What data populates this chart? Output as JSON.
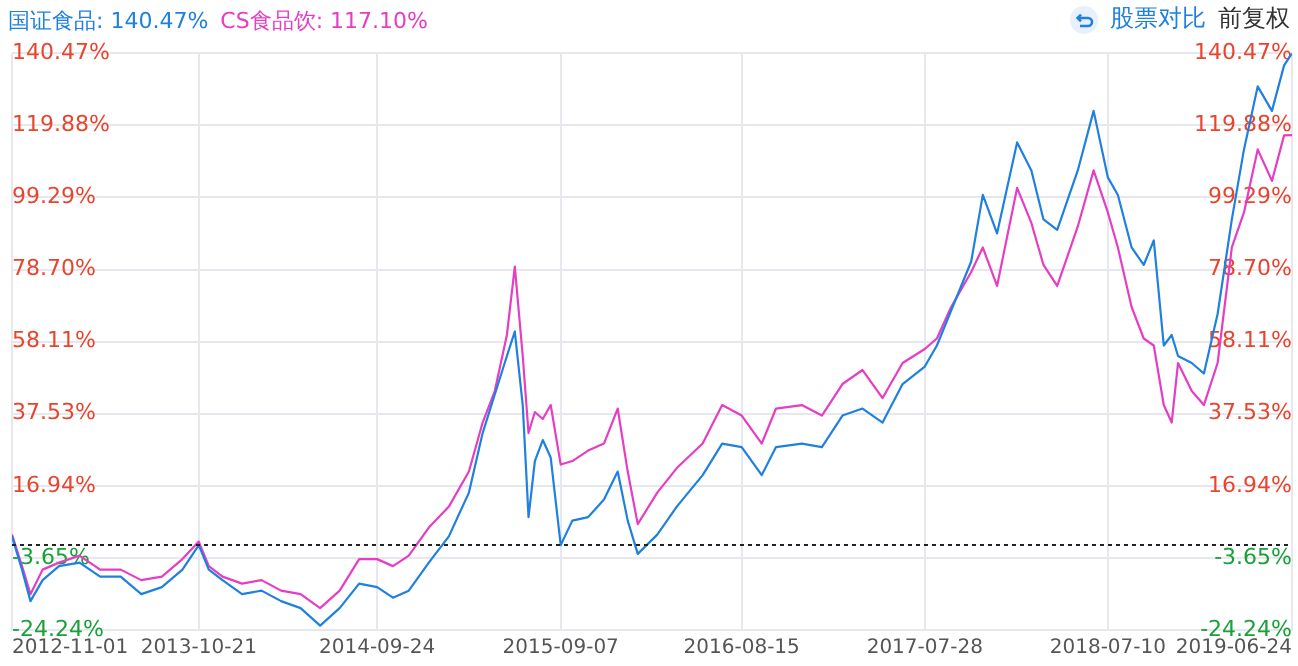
{
  "chart_data": {
    "type": "line",
    "legend": "top left",
    "grid": true,
    "marker": "none",
    "line_style": "solid",
    "annotations": [
      "股票对比",
      "前复权"
    ],
    "x": [
      "2012-11-01",
      "2012-11-20",
      "2012-12-06",
      "2012-12-29",
      "2013-01-29",
      "2013-03-09",
      "2013-04-17",
      "2013-05-26",
      "2013-07-04",
      "2013-08-12",
      "2013-09-20",
      "2013-10-21",
      "2013-11-09",
      "2013-12-05",
      "2014-01-11",
      "2014-02-17",
      "2014-03-26",
      "2014-05-02",
      "2014-06-08",
      "2014-07-15",
      "2014-08-21",
      "2014-09-24",
      "2014-10-24",
      "2014-11-23",
      "2014-12-31",
      "2015-02-07",
      "2015-03-17",
      "2015-04-12",
      "2015-05-05",
      "2015-05-28",
      "2015-06-12",
      "2015-06-27",
      "2015-07-08",
      "2015-07-20",
      "2015-08-04",
      "2015-08-19",
      "2015-09-07",
      "2015-09-29",
      "2015-10-29",
      "2015-11-28",
      "2015-12-24",
      "2016-01-12",
      "2016-01-31",
      "2016-03-08",
      "2016-04-14",
      "2016-06-02",
      "2016-07-09",
      "2016-08-15",
      "2016-09-22",
      "2016-10-19",
      "2016-12-07",
      "2017-01-14",
      "2017-02-22",
      "2017-04-01",
      "2017-05-09",
      "2017-06-16",
      "2017-07-28",
      "2017-08-20",
      "2017-09-16",
      "2017-10-24",
      "2017-11-15",
      "2017-12-12",
      "2018-01-19",
      "2018-02-15",
      "2018-03-10",
      "2018-04-05",
      "2018-05-14",
      "2018-06-13",
      "2018-07-10",
      "2018-07-29",
      "2018-08-24",
      "2018-09-16",
      "2018-10-05",
      "2018-10-24",
      "2018-11-08",
      "2018-11-20",
      "2018-12-16",
      "2019-01-08",
      "2019-02-03",
      "2019-03-02",
      "2019-03-25",
      "2019-04-20",
      "2019-05-17",
      "2019-06-09",
      "2019-06-24"
    ],
    "series": [
      {
        "name": "国证食品: 140.47%",
        "color": "#1f80e0",
        "values": [
          2.5,
          -7,
          -16,
          -10,
          -6,
          -5,
          -9,
          -9,
          -14,
          -12,
          -7,
          0,
          -7,
          -10,
          -14,
          -13,
          -16,
          -18,
          -23,
          -18,
          -11,
          -12,
          -15,
          -13,
          -5,
          2.5,
          15,
          32,
          43,
          54,
          61,
          40,
          8,
          24,
          30,
          25,
          0,
          7,
          8,
          13,
          21,
          7,
          -2.5,
          3,
          11,
          20,
          29,
          28,
          20,
          28,
          29,
          28,
          37,
          39,
          35,
          46,
          51,
          57,
          67,
          81,
          100,
          89,
          115,
          107,
          93,
          90,
          107,
          124,
          105,
          100,
          85,
          80,
          87,
          57,
          60,
          54,
          52,
          49,
          66,
          93,
          113,
          131,
          124,
          137,
          140.47
        ]
      },
      {
        "name": "CS食品饮: 117.10%",
        "color": "#e63ec3",
        "values": [
          3,
          -6,
          -14,
          -7,
          -5,
          -3,
          -7,
          -7,
          -10,
          -9,
          -4,
          1,
          -6,
          -9,
          -11,
          -10,
          -13,
          -14,
          -18,
          -13,
          -4,
          -4,
          -6,
          -3,
          5,
          11,
          21,
          35,
          44,
          60,
          79.5,
          54,
          32,
          38,
          36,
          40,
          23,
          24,
          27,
          29,
          39,
          21,
          6,
          15,
          22,
          29,
          40,
          37,
          29,
          39,
          40,
          37,
          46,
          50,
          42,
          52,
          56,
          59,
          68,
          78,
          85,
          74,
          102,
          92,
          80,
          74,
          91,
          107,
          95,
          85,
          68,
          59,
          57,
          40,
          35,
          52,
          44,
          40,
          52,
          85,
          95,
          113,
          104,
          117,
          117.1
        ]
      }
    ],
    "xlim": [
      "2012-11-01",
      "2019-06-24"
    ],
    "xticks": [
      "2012-11-01",
      "2013-10-21",
      "2014-09-24",
      "2015-09-07",
      "2016-08-15",
      "2017-07-28",
      "2018-07-10",
      "2019-06-24"
    ],
    "ylim": [
      -24.24,
      140.47
    ],
    "yticks": [
      {
        "value": -24.24,
        "label": "-24.24%"
      },
      {
        "value": -3.65,
        "label": "-3.65%"
      },
      {
        "value": 16.94,
        "label": "16.94%"
      },
      {
        "value": 37.53,
        "label": "37.53%"
      },
      {
        "value": 58.11,
        "label": "58.11%"
      },
      {
        "value": 78.7,
        "label": "78.70%"
      },
      {
        "value": 99.29,
        "label": "99.29%"
      },
      {
        "value": 119.88,
        "label": "119.88%"
      },
      {
        "value": 140.47,
        "label": "140.47%"
      }
    ],
    "y2lim": [
      -24.24,
      140.47
    ],
    "y2ticks": [
      {
        "value": -24.24,
        "label": "-24.24%"
      },
      {
        "value": -3.65,
        "label": "-3.65%"
      },
      {
        "value": 16.94,
        "label": "16.94%"
      },
      {
        "value": 37.53,
        "label": "37.53%"
      },
      {
        "value": 58.11,
        "label": "58.11%"
      },
      {
        "value": 78.7,
        "label": "78.70%"
      },
      {
        "value": 99.29,
        "label": "99.29%"
      },
      {
        "value": 119.88,
        "label": "119.88%"
      },
      {
        "value": 140.47,
        "label": "140.47%"
      }
    ],
    "ref_lines": [
      {
        "axis": "y",
        "value": 0,
        "color": "#222222",
        "line_style": "dotted"
      }
    ]
  }
}
